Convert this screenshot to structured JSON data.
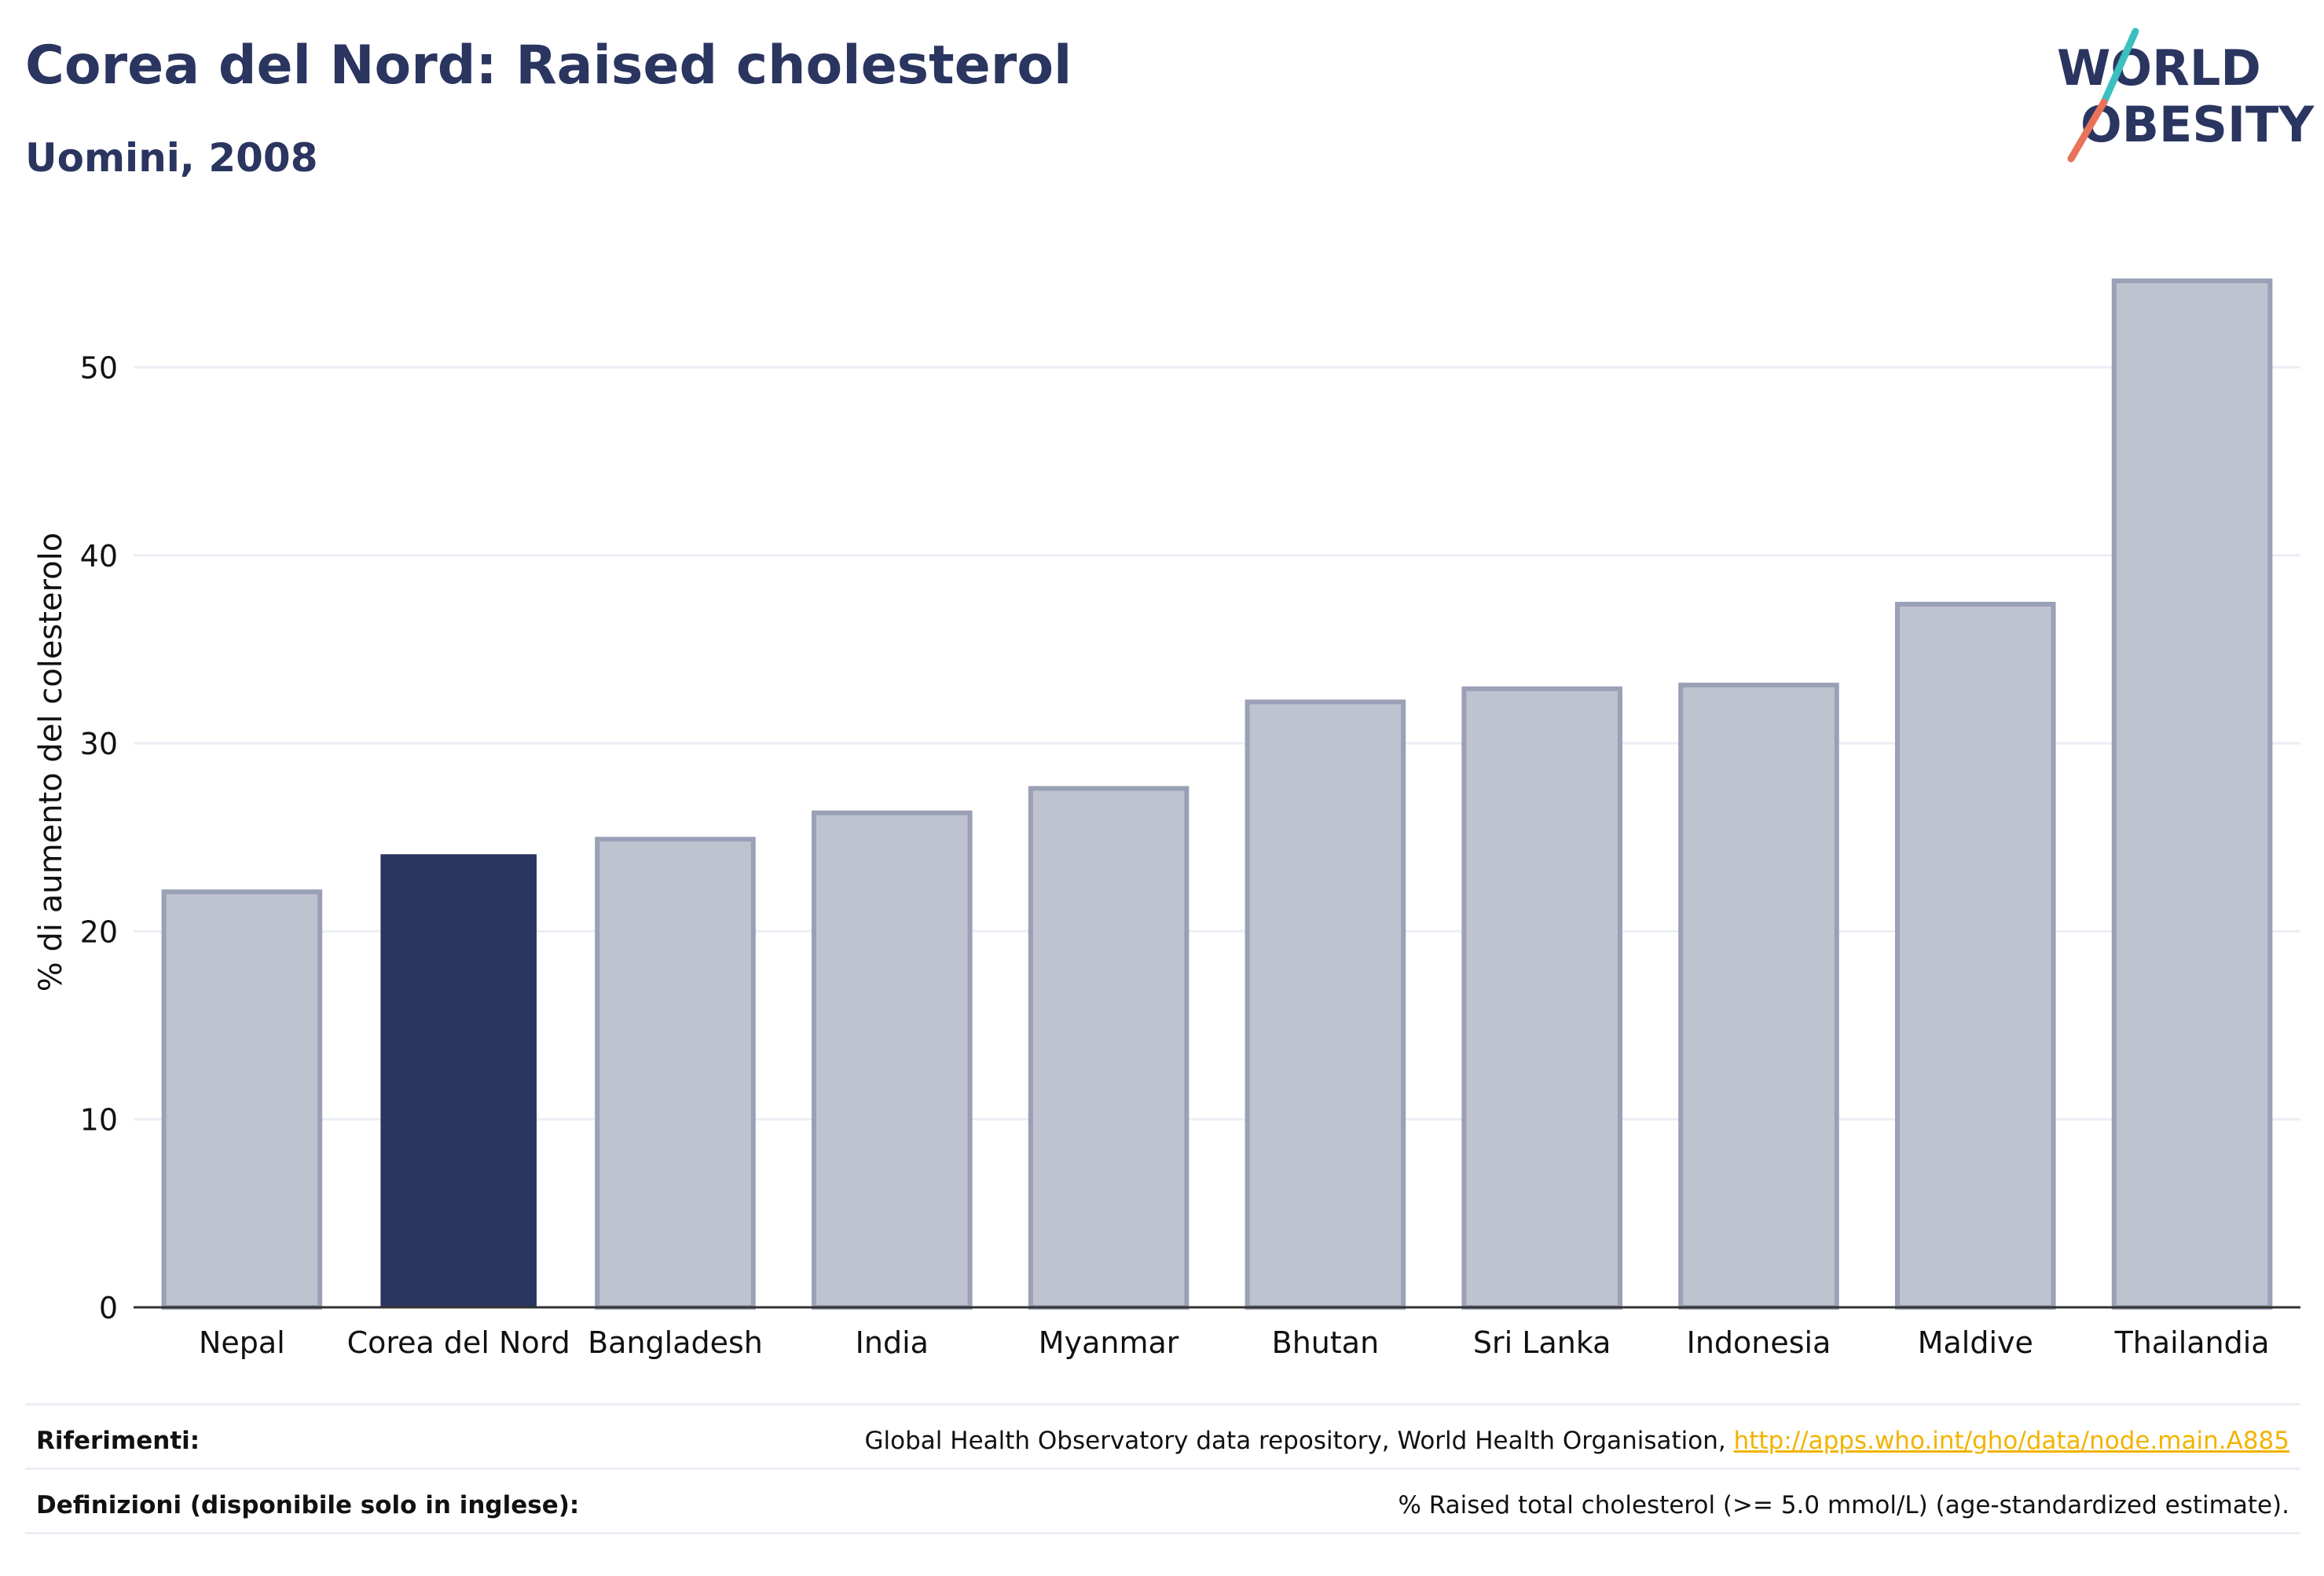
{
  "header": {
    "title": "Corea del Nord: Raised cholesterol",
    "subtitle": "Uomini, 2008"
  },
  "logo": {
    "line1": "WORLD",
    "line2": "OBESITY",
    "text_color": "#2a3560",
    "slash_color_top": "#3bbfbf",
    "slash_color_bottom": "#e8735a"
  },
  "chart_data": {
    "type": "bar",
    "categories": [
      "Nepal",
      "Corea del Nord",
      "Bangladesh",
      "India",
      "Myanmar",
      "Bhutan",
      "Sri Lanka",
      "Indonesia",
      "Maldive",
      "Thailandia"
    ],
    "values": [
      22.1,
      24.1,
      24.9,
      26.3,
      27.6,
      32.2,
      32.9,
      33.1,
      37.4,
      54.6
    ],
    "highlight_index": 1,
    "ylabel": "% di aumento del colesterolo",
    "ylim": [
      0,
      57
    ],
    "yticks": [
      0,
      10,
      20,
      30,
      40,
      50
    ],
    "grid": true,
    "colors": {
      "bar": "#bfc2cf",
      "bar_border": "#9aa0b6",
      "highlight": "#2a3560",
      "grid": "#eceef5",
      "axis": "#333333"
    }
  },
  "footer": {
    "references_label": "Riferimenti:",
    "references_text": "Global Health Observatory data repository, World Health Organisation, ",
    "references_link": "http://apps.who.int/gho/data/node.main.A885",
    "definitions_label": "Definizioni (disponibile solo in inglese):",
    "definitions_text": "% Raised total cholesterol (>= 5.0 mmol/L) (age-standardized estimate)."
  }
}
